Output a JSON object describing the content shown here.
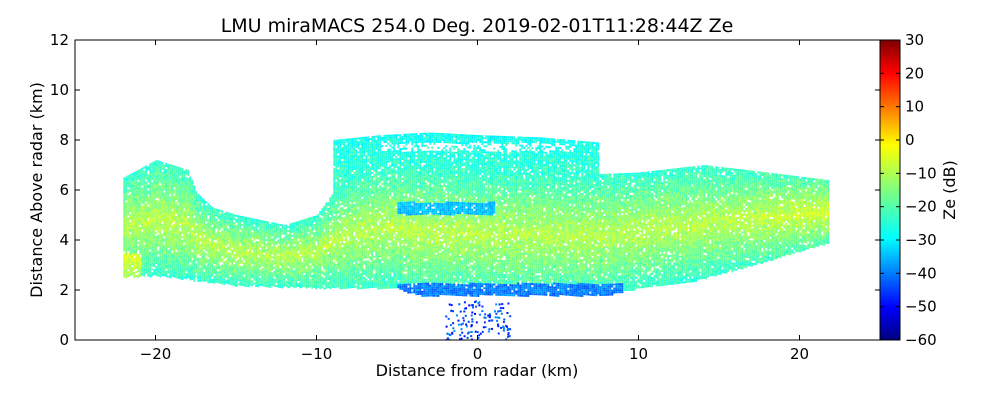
{
  "chart_data": {
    "type": "heatmap",
    "title": "LMU miraMACS 254.0 Deg. 2019-02-01T11:28:44Z  Ze",
    "xlabel": "Distance from radar (km)",
    "ylabel": "Distance Above radar  (km)",
    "xlim": [
      -25,
      25
    ],
    "ylim": [
      0,
      12
    ],
    "x_ticks": [
      -20,
      -10,
      0,
      10,
      20
    ],
    "x_tick_labels": [
      "−20",
      "−10",
      "0",
      "10",
      "20"
    ],
    "y_ticks": [
      0,
      2,
      4,
      6,
      8,
      10,
      12
    ],
    "y_tick_labels": [
      "0",
      "2",
      "4",
      "6",
      "8",
      "10",
      "12"
    ],
    "colorbar": {
      "label": "Ze (dB)",
      "colormap": "jet",
      "vmin": -60,
      "vmax": 30,
      "ticks": [
        -60,
        -50,
        -40,
        -30,
        -20,
        -10,
        0,
        10,
        20,
        30
      ],
      "tick_labels": [
        "−60",
        "−50",
        "−40",
        "−30",
        "−20",
        "−10",
        "0",
        "10",
        "20",
        "30"
      ]
    },
    "regions": [
      {
        "name": "main-layer",
        "x_range": [
          -22,
          21.8
        ],
        "y_range": [
          2.2,
          6.5
        ],
        "typical_ze": -15
      },
      {
        "name": "upper-layer",
        "x_range": [
          -9,
          7.5
        ],
        "y_range": [
          6.0,
          8.3
        ],
        "typical_ze": -22
      },
      {
        "name": "left-tall-region",
        "x_range": [
          -22,
          -17.5
        ],
        "y_range": [
          2.3,
          7.4
        ],
        "typical_ze": -14
      },
      {
        "name": "base-strip",
        "x_range": [
          -4.5,
          8
        ],
        "y_range": [
          1.6,
          2.2
        ],
        "typical_ze": -38
      },
      {
        "name": "near-ground-speckle",
        "x_range": [
          -2.5,
          3
        ],
        "y_range": [
          0,
          1.5
        ],
        "typical_ze": -40
      }
    ]
  }
}
